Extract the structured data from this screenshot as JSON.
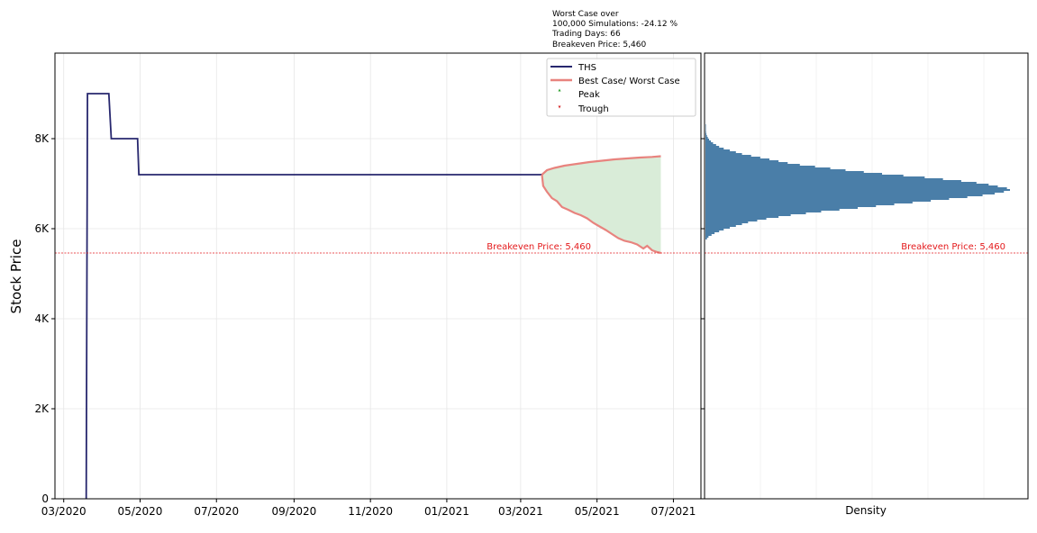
{
  "annotation": {
    "lines": [
      "Worst Case over",
      "100,000 Simulations: -24.12 %",
      "Trading Days: 66",
      "Breakeven Price: 5,460"
    ]
  },
  "colors": {
    "ths_line": "#27276e",
    "best_worst_line": "#e8837e",
    "fill": "#d9ecd8",
    "breakeven": "#e41a1c",
    "histogram": "#4a7ea8",
    "peak_marker": "#2ca02c",
    "trough_marker": "#d62728",
    "grid": "#e6e6e6"
  },
  "chart_data": [
    {
      "type": "line",
      "title": "",
      "xlabel": "",
      "ylabel": "Stock Price",
      "xlim": [
        "2020-02-23",
        "2021-07-23"
      ],
      "ylim": [
        0,
        9900
      ],
      "grid": true,
      "legend_position": "top-right",
      "x_tick_labels": [
        "03/2020",
        "05/2020",
        "07/2020",
        "09/2020",
        "11/2020",
        "01/2021",
        "03/2021",
        "05/2021",
        "07/2021"
      ],
      "x_ticks": [
        "2020-03-01",
        "2020-05-01",
        "2020-07-01",
        "2020-09-01",
        "2020-11-01",
        "2021-01-01",
        "2021-03-01",
        "2021-05-01",
        "2021-07-01"
      ],
      "y_ticks": [
        0,
        2000,
        4000,
        6000,
        8000
      ],
      "y_tick_labels": [
        "0",
        "2K",
        "4K",
        "6K",
        "8K"
      ],
      "series": [
        {
          "name": "THS",
          "points": [
            [
              "2020-03-19",
              0
            ],
            [
              "2020-03-20",
              9000
            ],
            [
              "2020-04-06",
              9000
            ],
            [
              "2020-04-08",
              8000
            ],
            [
              "2020-04-29",
              8000
            ],
            [
              "2020-04-30",
              7200
            ],
            [
              "2021-03-18",
              7200
            ]
          ]
        },
        {
          "name": "Best Case/ Worst Case",
          "best": [
            [
              "2021-03-18",
              7200
            ],
            [
              "2021-03-22",
              7300
            ],
            [
              "2021-03-28",
              7350
            ],
            [
              "2021-04-05",
              7400
            ],
            [
              "2021-04-15",
              7440
            ],
            [
              "2021-04-25",
              7480
            ],
            [
              "2021-05-05",
              7510
            ],
            [
              "2021-05-15",
              7540
            ],
            [
              "2021-05-25",
              7560
            ],
            [
              "2021-06-04",
              7580
            ],
            [
              "2021-06-14",
              7595
            ],
            [
              "2021-06-21",
              7610
            ]
          ],
          "worst": [
            [
              "2021-03-18",
              7200
            ],
            [
              "2021-03-19",
              6950
            ],
            [
              "2021-03-22",
              6820
            ],
            [
              "2021-03-26",
              6680
            ],
            [
              "2021-03-30",
              6610
            ],
            [
              "2021-04-03",
              6480
            ],
            [
              "2021-04-08",
              6420
            ],
            [
              "2021-04-13",
              6350
            ],
            [
              "2021-04-18",
              6300
            ],
            [
              "2021-04-23",
              6230
            ],
            [
              "2021-04-28",
              6130
            ],
            [
              "2021-05-03",
              6050
            ],
            [
              "2021-05-08",
              5970
            ],
            [
              "2021-05-13",
              5880
            ],
            [
              "2021-05-18",
              5790
            ],
            [
              "2021-05-23",
              5730
            ],
            [
              "2021-05-28",
              5700
            ],
            [
              "2021-06-02",
              5650
            ],
            [
              "2021-06-07",
              5560
            ],
            [
              "2021-06-10",
              5620
            ],
            [
              "2021-06-14",
              5520
            ],
            [
              "2021-06-18",
              5480
            ],
            [
              "2021-06-21",
              5460
            ]
          ]
        }
      ],
      "markers": {
        "peak": {
          "name": "Peak",
          "points": []
        },
        "trough": {
          "name": "Trough",
          "points": []
        }
      },
      "breakeven": {
        "value": 5460,
        "label": "Breakeven Price: 5,460"
      }
    },
    {
      "type": "histogram",
      "orientation": "horizontal",
      "xlabel": "Density",
      "ylim": [
        0,
        9900
      ],
      "grid": true,
      "bins": [
        [
          5760,
          0.005
        ],
        [
          5800,
          0.01
        ],
        [
          5840,
          0.02
        ],
        [
          5880,
          0.03
        ],
        [
          5920,
          0.045
        ],
        [
          5960,
          0.06
        ],
        [
          6000,
          0.08
        ],
        [
          6040,
          0.1
        ],
        [
          6080,
          0.12
        ],
        [
          6120,
          0.14
        ],
        [
          6160,
          0.17
        ],
        [
          6200,
          0.2
        ],
        [
          6240,
          0.24
        ],
        [
          6280,
          0.28
        ],
        [
          6320,
          0.33
        ],
        [
          6360,
          0.38
        ],
        [
          6400,
          0.44
        ],
        [
          6440,
          0.5
        ],
        [
          6480,
          0.56
        ],
        [
          6520,
          0.62
        ],
        [
          6560,
          0.68
        ],
        [
          6600,
          0.74
        ],
        [
          6640,
          0.8
        ],
        [
          6680,
          0.86
        ],
        [
          6720,
          0.91
        ],
        [
          6760,
          0.95
        ],
        [
          6800,
          0.98
        ],
        [
          6840,
          1.0
        ],
        [
          6880,
          0.99
        ],
        [
          6920,
          0.96
        ],
        [
          6960,
          0.93
        ],
        [
          7000,
          0.89
        ],
        [
          7040,
          0.84
        ],
        [
          7080,
          0.78
        ],
        [
          7120,
          0.72
        ],
        [
          7160,
          0.65
        ],
        [
          7200,
          0.58
        ],
        [
          7240,
          0.52
        ],
        [
          7280,
          0.46
        ],
        [
          7320,
          0.41
        ],
        [
          7360,
          0.36
        ],
        [
          7400,
          0.31
        ],
        [
          7440,
          0.27
        ],
        [
          7480,
          0.24
        ],
        [
          7520,
          0.21
        ],
        [
          7560,
          0.18
        ],
        [
          7600,
          0.15
        ],
        [
          7640,
          0.12
        ],
        [
          7680,
          0.1
        ],
        [
          7720,
          0.08
        ],
        [
          7760,
          0.06
        ],
        [
          7800,
          0.045
        ],
        [
          7840,
          0.035
        ],
        [
          7880,
          0.025
        ],
        [
          7920,
          0.018
        ],
        [
          7960,
          0.012
        ],
        [
          8000,
          0.008
        ],
        [
          8040,
          0.005
        ],
        [
          8080,
          0.003
        ],
        [
          8120,
          0.002
        ],
        [
          8160,
          0.0015
        ],
        [
          8200,
          0.001
        ],
        [
          8240,
          0.001
        ],
        [
          8280,
          0.0005
        ]
      ],
      "breakeven": {
        "value": 5460,
        "label": "Breakeven Price: 5,460"
      }
    }
  ]
}
